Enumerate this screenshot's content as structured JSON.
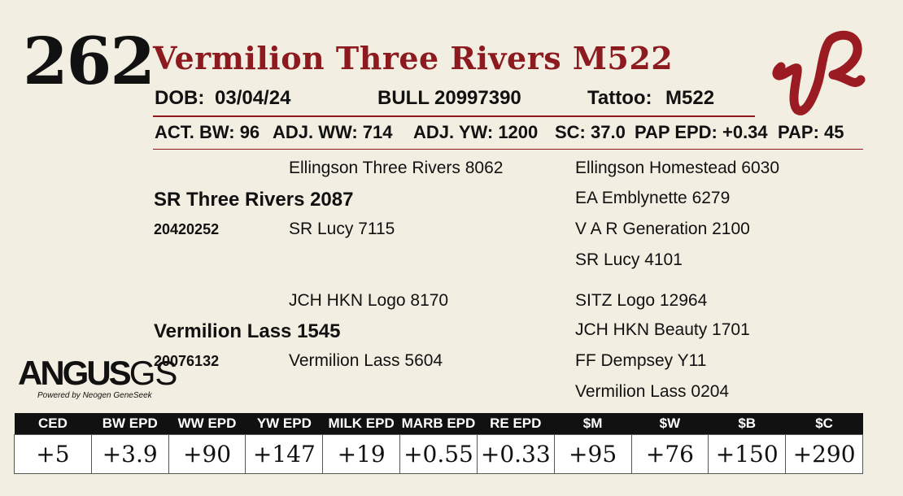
{
  "lot_number": "262",
  "animal_name": "Vermilion Three Rivers M522",
  "logo_text": "VR",
  "identification": {
    "dob_label": "DOB:",
    "dob_value": "03/04/24",
    "sex_label": "BULL",
    "registration": "20997390",
    "tattoo_label": "Tattoo:",
    "tattoo_value": "M522"
  },
  "performance": {
    "act_bw": "ACT. BW: 96",
    "adj_ww": "ADJ. WW: 714",
    "adj_yw": "ADJ. YW: 1200",
    "sc": "SC: 37.0",
    "pap_epd": "PAP EPD: +0.34",
    "pap": "PAP: 45"
  },
  "pedigree": {
    "sire": {
      "name": "SR Three Rivers 2087",
      "registration": "20420252",
      "sire": "Ellingson Three Rivers 8062",
      "dam": "SR Lucy 7115",
      "sire_sire": "Ellingson Homestead 6030",
      "sire_dam": "EA Emblynette 6279",
      "dam_sire": "V A R Generation 2100",
      "dam_dam": "SR Lucy 4101"
    },
    "dam": {
      "name": "Vermilion Lass 1545",
      "registration": "20076132",
      "sire": "JCH HKN Logo 8170",
      "dam": "Vermilion Lass 5604",
      "sire_sire": "SITZ Logo 12964",
      "sire_dam": "JCH HKN Beauty 1701",
      "dam_sire": "FF Dempsey Y11",
      "dam_dam": "Vermilion Lass 0204"
    }
  },
  "angus_logo": {
    "word": "ANGUS",
    "suffix": "GS",
    "tagline": "Powered by Neogen GeneSeek"
  },
  "epd_table": {
    "headers": [
      "CED",
      "BW EPD",
      "WW EPD",
      "YW EPD",
      "MILK EPD",
      "MARB EPD",
      "RE EPD",
      "$M",
      "$W",
      "$B",
      "$C"
    ],
    "values": [
      "+5",
      "+3.9",
      "+90",
      "+147",
      "+19",
      "+0.55",
      "+0.33",
      "+95",
      "+76",
      "+150",
      "+290"
    ]
  },
  "colors": {
    "background": "#f2eee2",
    "name_red": "#8c1a1f",
    "header_black": "#111111"
  }
}
